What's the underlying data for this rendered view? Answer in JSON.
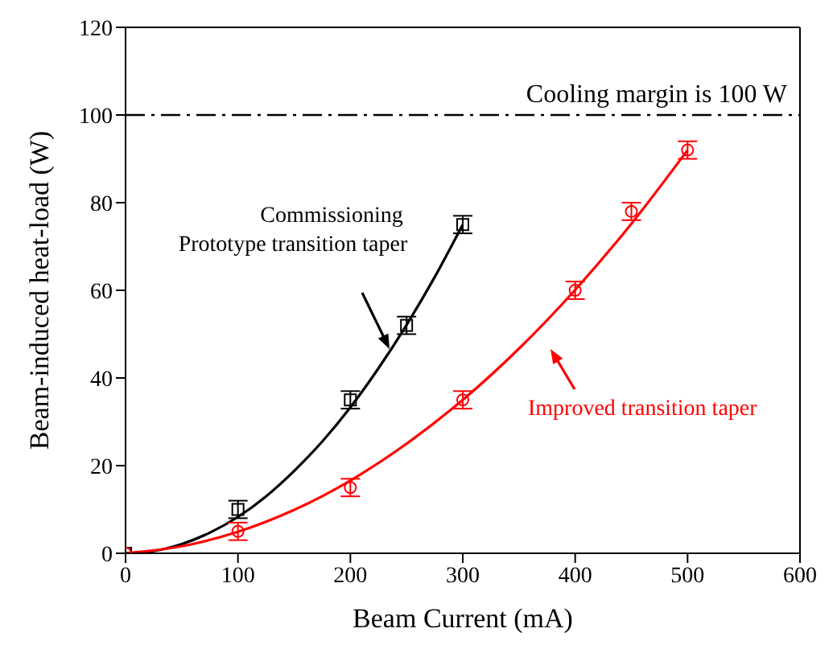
{
  "chart_data": {
    "type": "scatter",
    "xlabel": "Beam Current (mA)",
    "ylabel": "Beam-induced heat-load (W)",
    "xlim": [
      0,
      600
    ],
    "xticks": [
      0,
      100,
      200,
      300,
      400,
      500,
      600
    ],
    "ylim": [
      0,
      120
    ],
    "yticks": [
      0,
      20,
      40,
      60,
      80,
      100,
      120
    ],
    "series": [
      {
        "type": "line",
        "color": "#000000",
        "x": [
          0,
          25,
          50,
          75,
          100,
          125,
          150,
          175,
          200,
          225,
          250,
          275,
          300
        ],
        "values": [
          0,
          0.5,
          2.1,
          4.7,
          8.3,
          13,
          18.8,
          25.5,
          33.3,
          42.2,
          52.1,
          63,
          75
        ]
      },
      {
        "type": "line",
        "color": "#ff0000",
        "x": [
          0,
          50,
          100,
          150,
          200,
          250,
          300,
          350,
          400,
          450,
          500
        ],
        "values": [
          0,
          1.6,
          4.9,
          9.9,
          16.6,
          25,
          35,
          46.7,
          60.1,
          75.2,
          92
        ]
      },
      {
        "color": "#000000",
        "marker": "square",
        "x": [
          0,
          100,
          200,
          250,
          300
        ],
        "values": [
          0,
          10,
          35,
          52,
          75
        ],
        "errors": [
          null,
          2,
          2,
          2,
          2
        ]
      },
      {
        "color": "#ff0000",
        "marker": "circle",
        "x": [
          0,
          100,
          200,
          300,
          400,
          450,
          500
        ],
        "values": [
          0,
          5,
          15,
          35,
          60,
          78,
          92
        ],
        "errors": [
          null,
          2,
          2,
          2,
          2,
          2,
          2
        ]
      }
    ],
    "ref_lines": [
      {
        "axis": "y",
        "value": 100,
        "label": "Cooling margin is 100 W",
        "color": "#000000",
        "line_style": "dashed"
      }
    ],
    "annotations": [
      "Commissioning\nPrototype transition taper",
      "Improved transition taper"
    ]
  }
}
